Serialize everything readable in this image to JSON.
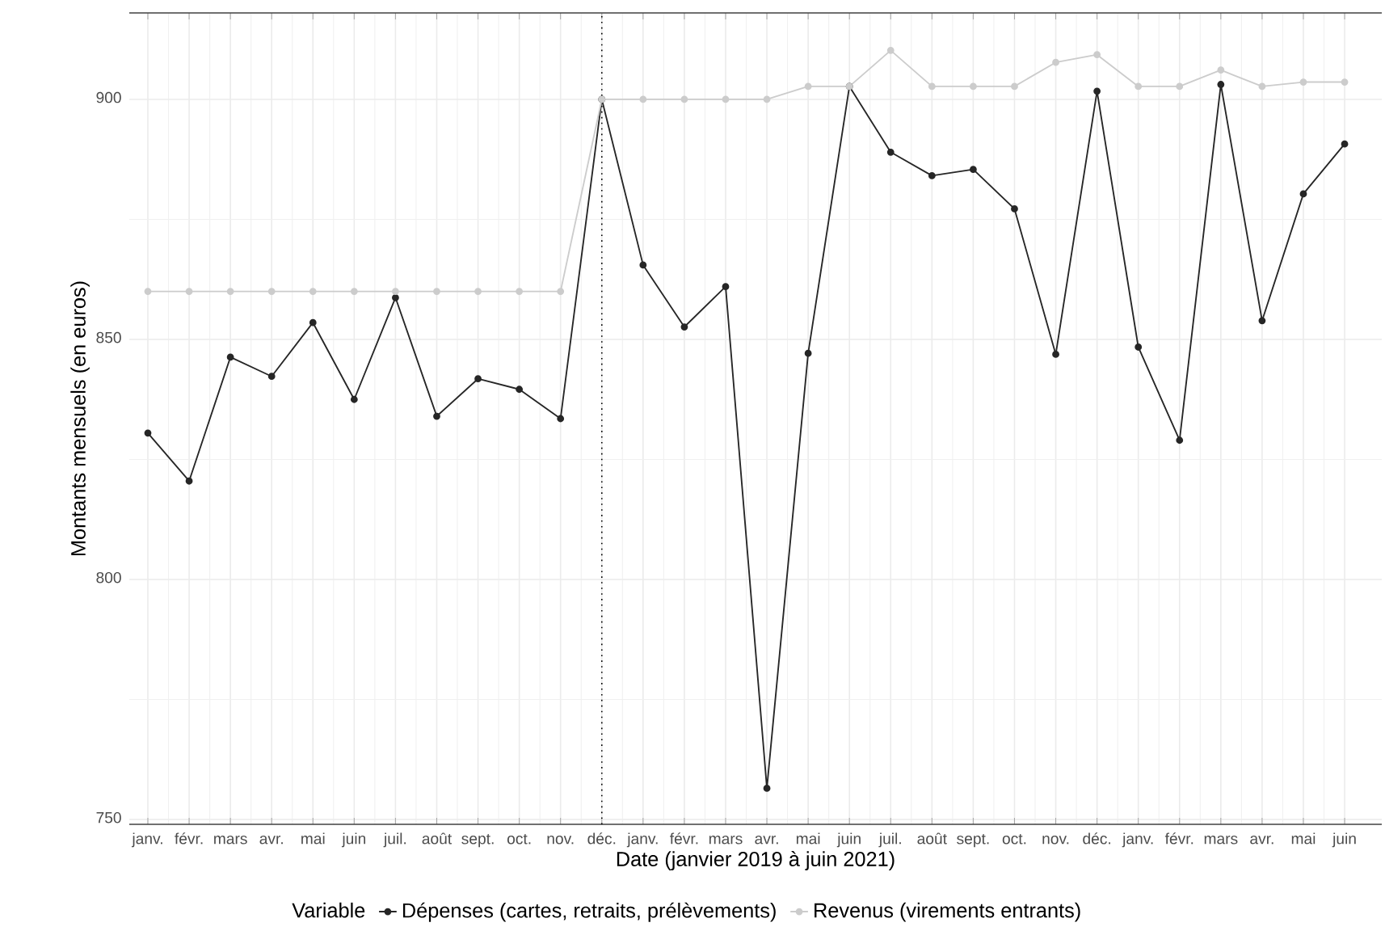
{
  "chart_data": {
    "type": "line",
    "xlabel": "Date (janvier 2019 à juin 2021)",
    "ylabel": "Montants mensuels (en euros)",
    "legend_title": "Variable",
    "categories": [
      "janv.",
      "févr.",
      "mars",
      "avr.",
      "mai",
      "juin",
      "juil.",
      "août",
      "sept.",
      "oct.",
      "nov.",
      "déc.",
      "janv.",
      "févr.",
      "mars",
      "avr.",
      "mai",
      "juin",
      "juil.",
      "août",
      "sept.",
      "oct.",
      "nov.",
      "déc.",
      "janv.",
      "févr.",
      "mars",
      "avr.",
      "mai",
      "juin"
    ],
    "series": [
      {
        "name": "Dépenses (cartes, retraits, prélèvements)",
        "color": "#262626",
        "values": [
          830.5,
          820.5,
          846.3,
          842.3,
          853.5,
          837.5,
          858.7,
          834.0,
          841.8,
          839.6,
          833.5,
          900.0,
          865.5,
          852.6,
          861.0,
          756.5,
          847.1,
          902.7,
          889.0,
          884.1,
          885.4,
          877.2,
          846.9,
          901.7,
          848.4,
          829.0,
          903.1,
          853.9,
          880.3,
          890.7
        ]
      },
      {
        "name": "Revenus (virements entrants)",
        "color": "#cccccc",
        "values": [
          860,
          860,
          860,
          860,
          860,
          860,
          860,
          860,
          860,
          860,
          860,
          900,
          900,
          900,
          900,
          900,
          902.7,
          902.7,
          910.2,
          902.7,
          902.7,
          902.7,
          907.7,
          909.3,
          902.7,
          902.7,
          906.1,
          902.7,
          903.6,
          903.6
        ]
      }
    ],
    "ylim": [
      749,
      918
    ],
    "yticks": [
      750,
      800,
      850,
      900
    ],
    "ref_lines": [
      {
        "axis": "x",
        "value": "déc.",
        "color": "#000000",
        "line_style": "dotted"
      }
    ],
    "grid": true,
    "legend": "bottom",
    "marker": "circle",
    "line_style": "solid"
  }
}
